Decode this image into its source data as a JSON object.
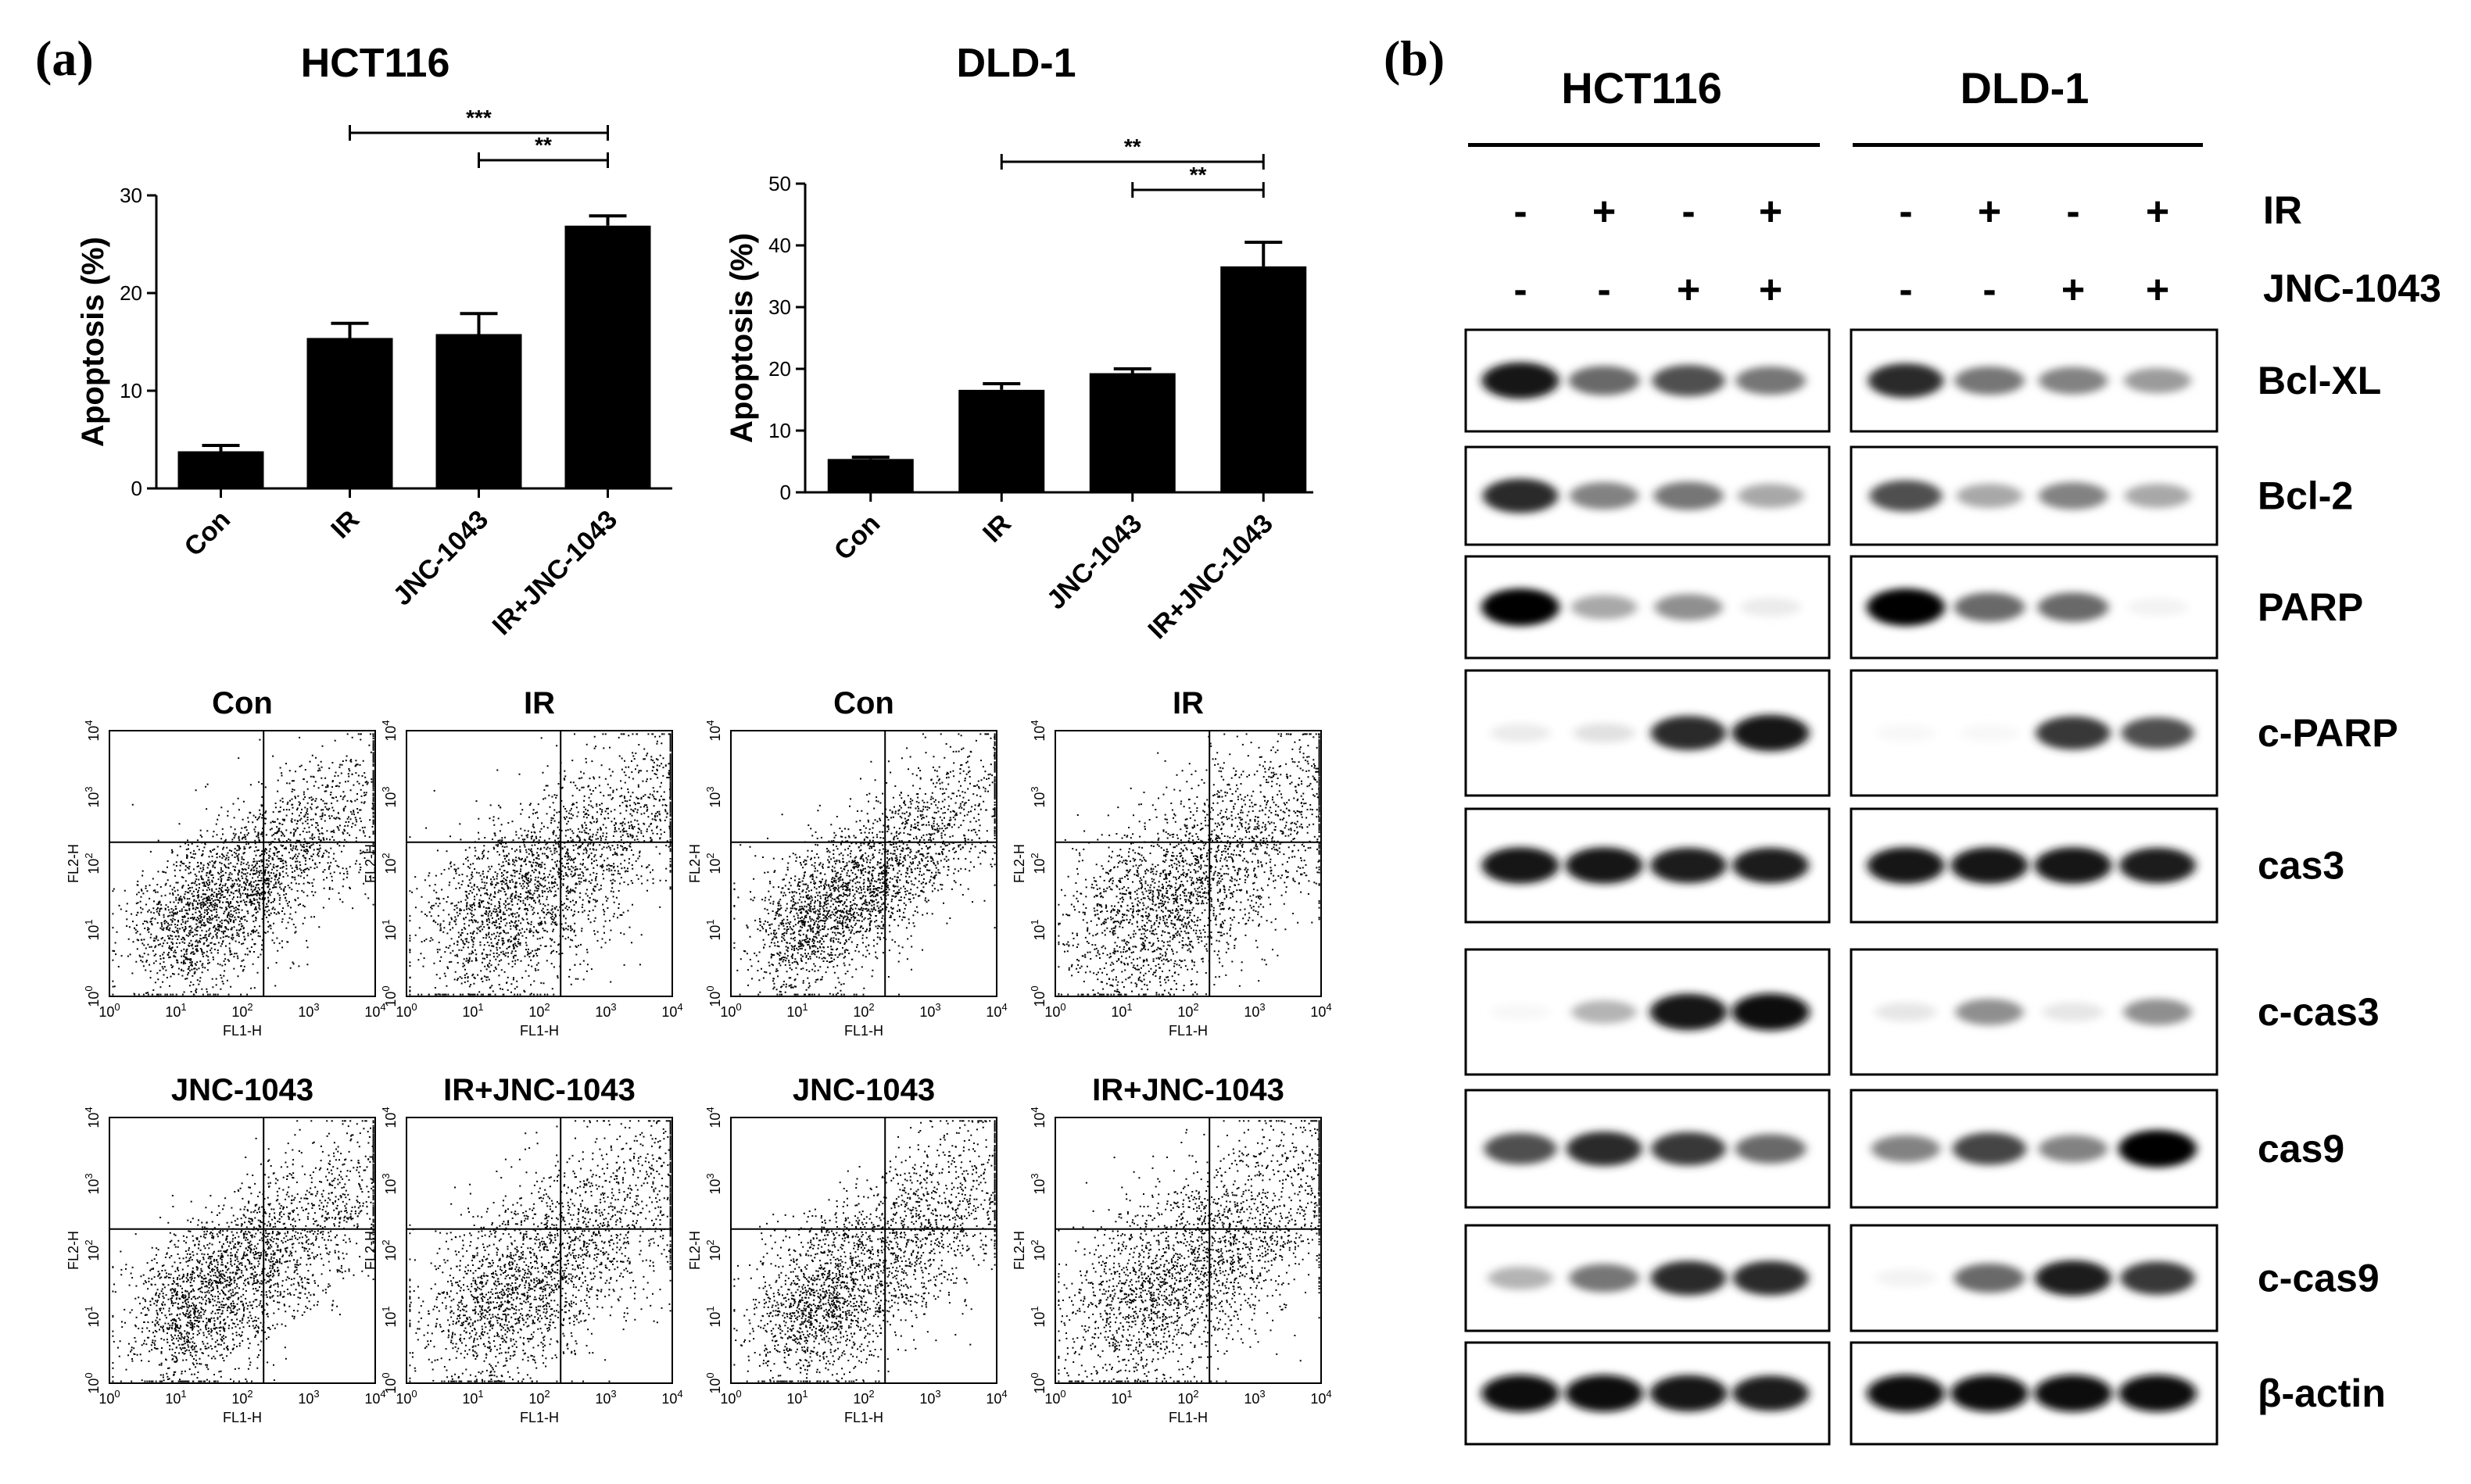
{
  "panel_a_label": "(a)",
  "panel_b_label": "(b)",
  "chart_data": [
    {
      "type": "bar",
      "title": "HCT116",
      "ylabel": "Apoptosis (%)",
      "categories": [
        "Con",
        "IR",
        "JNC-1043",
        "IR+JNC-1043"
      ],
      "values": [
        3.8,
        15.4,
        15.8,
        26.9
      ],
      "errors": [
        0.6,
        1.5,
        2.1,
        1.0
      ],
      "ylim": [
        0,
        30
      ],
      "yticks": [
        0,
        10,
        20,
        30
      ],
      "significance": [
        {
          "from": 1,
          "to": 3,
          "label": "***"
        },
        {
          "from": 2,
          "to": 3,
          "label": "**"
        }
      ]
    },
    {
      "type": "bar",
      "title": "DLD-1",
      "ylabel": "Apoptosis (%)",
      "categories": [
        "Con",
        "IR",
        "JNC-1043",
        "IR+JNC-1043"
      ],
      "values": [
        5.4,
        16.6,
        19.3,
        36.6
      ],
      "errors": [
        0.3,
        1.0,
        0.7,
        3.9
      ],
      "ylim": [
        0,
        50
      ],
      "yticks": [
        0,
        10,
        20,
        30,
        40,
        50
      ],
      "significance": [
        {
          "from": 1,
          "to": 3,
          "label": "**"
        },
        {
          "from": 2,
          "to": 3,
          "label": "**"
        }
      ]
    }
  ],
  "flow": {
    "xlabel": "FL1-H",
    "ylabel": "FL2-H",
    "tick_base": "10",
    "tick_exponents": [
      "0",
      "1",
      "2",
      "3",
      "4"
    ],
    "plots": [
      {
        "title": "Con",
        "seed": 11,
        "spread": 0.45
      },
      {
        "title": "IR",
        "seed": 23,
        "spread": 0.75
      },
      {
        "title": "Con",
        "seed": 37,
        "spread": 0.4
      },
      {
        "title": "IR",
        "seed": 41,
        "spread": 0.8
      },
      {
        "title": "JNC-1043",
        "seed": 53,
        "spread": 0.55
      },
      {
        "title": "IR+JNC-1043",
        "seed": 67,
        "spread": 0.8
      },
      {
        "title": "JNC-1043",
        "seed": 71,
        "spread": 0.6
      },
      {
        "title": "IR+JNC-1043",
        "seed": 83,
        "spread": 0.85
      }
    ]
  },
  "blot": {
    "groups": [
      "HCT116",
      "DLD-1"
    ],
    "treatments": [
      {
        "name": "IR",
        "signs": [
          "-",
          "+",
          "-",
          "+"
        ]
      },
      {
        "name": "JNC-1043",
        "signs": [
          "-",
          "-",
          "+",
          "+"
        ]
      }
    ],
    "rows": [
      {
        "name": "Bcl-XL",
        "intensity": [
          [
            0.95,
            0.6,
            0.7,
            0.55
          ],
          [
            0.85,
            0.55,
            0.5,
            0.4
          ]
        ]
      },
      {
        "name": "Bcl-2",
        "intensity": [
          [
            0.85,
            0.5,
            0.55,
            0.35
          ],
          [
            0.7,
            0.35,
            0.5,
            0.35
          ]
        ]
      },
      {
        "name": "PARP",
        "intensity": [
          [
            1.0,
            0.35,
            0.45,
            0.08
          ],
          [
            1.0,
            0.6,
            0.6,
            0.05
          ]
        ]
      },
      {
        "name": "c-PARP",
        "intensity": [
          [
            0.08,
            0.12,
            0.85,
            0.95
          ],
          [
            0.03,
            0.03,
            0.8,
            0.7
          ]
        ]
      },
      {
        "name": "cas3",
        "intensity": [
          [
            0.95,
            0.95,
            0.9,
            0.9
          ],
          [
            0.95,
            0.95,
            0.95,
            0.9
          ]
        ]
      },
      {
        "name": "c-cas3",
        "intensity": [
          [
            0.03,
            0.3,
            0.95,
            0.98
          ],
          [
            0.1,
            0.45,
            0.1,
            0.45
          ]
        ]
      },
      {
        "name": "cas9",
        "intensity": [
          [
            0.7,
            0.85,
            0.8,
            0.6
          ],
          [
            0.5,
            0.75,
            0.5,
            1.0
          ]
        ]
      },
      {
        "name": "c-cas9",
        "intensity": [
          [
            0.3,
            0.55,
            0.85,
            0.85
          ],
          [
            0.05,
            0.6,
            0.9,
            0.8
          ]
        ]
      },
      {
        "name": "β-actin",
        "intensity": [
          [
            0.98,
            0.98,
            0.95,
            0.9
          ],
          [
            0.98,
            0.98,
            0.98,
            0.98
          ]
        ]
      }
    ]
  }
}
